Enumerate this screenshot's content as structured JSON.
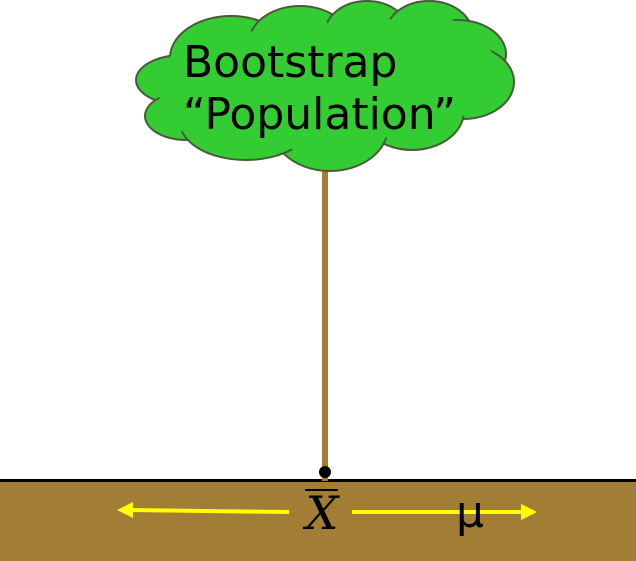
{
  "colors": {
    "cloud_fill": "#33cc33",
    "cloud_stroke": "#4a5a38",
    "trunk": "#a67c35",
    "ground": "#a27d36",
    "ground_line": "#000000",
    "arrow": "#ffff00",
    "text": "#000000"
  },
  "cloud": {
    "line1": "Bootstrap",
    "line2": "“Population”"
  },
  "ground": {
    "xbar_symbol": "X",
    "mu_symbol": "μ"
  },
  "icons": {
    "left_arrow": "arrow-left-icon",
    "right_arrow": "arrow-right-icon"
  }
}
